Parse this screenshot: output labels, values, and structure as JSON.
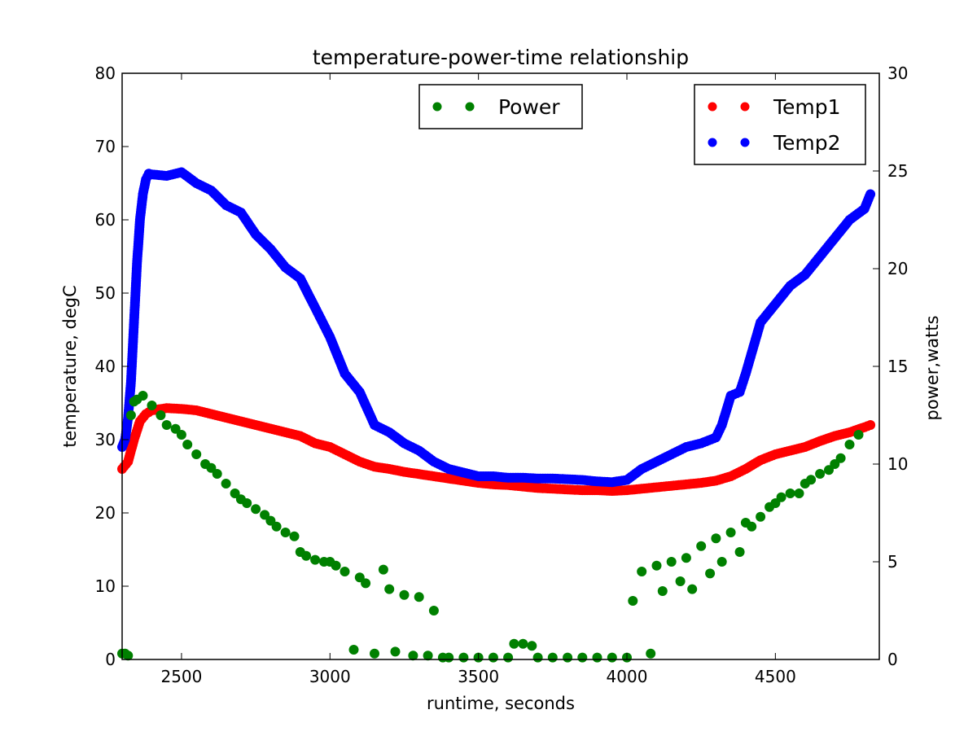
{
  "chart_data": {
    "type": "scatter",
    "title": "temperature-power-time relationship",
    "xlabel": "runtime, seconds",
    "ylabel": "temperature, degC",
    "y2label": "power,watts",
    "xlim": [
      2300,
      4850
    ],
    "ylim": [
      0,
      80
    ],
    "y2lim": [
      0,
      30
    ],
    "xticks": [
      2500,
      3000,
      3500,
      4000,
      4500
    ],
    "yticks": [
      0,
      10,
      20,
      30,
      40,
      50,
      60,
      70,
      80
    ],
    "y2ticks": [
      0,
      5,
      10,
      15,
      20,
      25,
      30
    ],
    "grid": false,
    "legends": [
      {
        "placement": "top-center",
        "entries": [
          "Power"
        ]
      },
      {
        "placement": "top-right",
        "entries": [
          "Temp1",
          "Temp2"
        ]
      }
    ],
    "series": [
      {
        "name": "Temp1",
        "axis": "left",
        "color": "#ff0000",
        "x": [
          2300,
          2320,
          2340,
          2360,
          2380,
          2400,
          2450,
          2500,
          2550,
          2600,
          2650,
          2700,
          2750,
          2800,
          2850,
          2900,
          2950,
          3000,
          3050,
          3100,
          3150,
          3200,
          3250,
          3300,
          3350,
          3400,
          3450,
          3500,
          3550,
          3600,
          3650,
          3700,
          3750,
          3800,
          3850,
          3900,
          3950,
          4000,
          4050,
          4100,
          4150,
          4200,
          4250,
          4300,
          4350,
          4400,
          4450,
          4500,
          4550,
          4600,
          4650,
          4700,
          4750,
          4800,
          4820
        ],
        "y": [
          26,
          27,
          30,
          32.5,
          33.5,
          34,
          34.3,
          34.2,
          34,
          33.5,
          33,
          32.5,
          32,
          31.5,
          31,
          30.5,
          29.5,
          29,
          28,
          27,
          26.3,
          26,
          25.6,
          25.3,
          25,
          24.7,
          24.4,
          24.1,
          23.9,
          23.8,
          23.6,
          23.4,
          23.3,
          23.2,
          23.1,
          23.1,
          23,
          23.1,
          23.3,
          23.5,
          23.7,
          23.9,
          24.1,
          24.4,
          25,
          26,
          27.2,
          28,
          28.5,
          29,
          29.8,
          30.5,
          31,
          31.7,
          32
        ]
      },
      {
        "name": "Temp2",
        "axis": "left",
        "color": "#0000ff",
        "x": [
          2300,
          2310,
          2320,
          2330,
          2340,
          2350,
          2360,
          2370,
          2380,
          2390,
          2400,
          2450,
          2500,
          2550,
          2600,
          2650,
          2700,
          2750,
          2800,
          2850,
          2900,
          2950,
          3000,
          3050,
          3100,
          3150,
          3200,
          3250,
          3300,
          3350,
          3400,
          3450,
          3500,
          3550,
          3600,
          3650,
          3700,
          3750,
          3800,
          3850,
          3900,
          3950,
          4000,
          4050,
          4100,
          4150,
          4200,
          4250,
          4300,
          4320,
          4350,
          4380,
          4400,
          4450,
          4500,
          4550,
          4600,
          4650,
          4700,
          4750,
          4800,
          4820
        ],
        "y": [
          29,
          30,
          33,
          38,
          46,
          54,
          60,
          63.5,
          65.5,
          66.3,
          66.2,
          66,
          66.5,
          65,
          64,
          62,
          61,
          58,
          56,
          53.5,
          52,
          48,
          44,
          39,
          36.5,
          32,
          31,
          29.5,
          28.5,
          27,
          26,
          25.5,
          25,
          25,
          24.8,
          24.8,
          24.7,
          24.7,
          24.6,
          24.5,
          24.3,
          24.2,
          24.5,
          26,
          27,
          28,
          29,
          29.5,
          30.3,
          32,
          36,
          36.5,
          39,
          46,
          48.5,
          51,
          52.5,
          55,
          57.5,
          60,
          61.5,
          63.5
        ]
      },
      {
        "name": "Power",
        "axis": "right",
        "color": "#008000",
        "x": [
          2300,
          2310,
          2320,
          2330,
          2340,
          2350,
          2370,
          2400,
          2430,
          2450,
          2480,
          2500,
          2520,
          2550,
          2580,
          2600,
          2620,
          2650,
          2680,
          2700,
          2720,
          2750,
          2780,
          2800,
          2820,
          2850,
          2880,
          2900,
          2920,
          2950,
          2980,
          3000,
          3020,
          3050,
          3080,
          3100,
          3120,
          3150,
          3180,
          3200,
          3220,
          3250,
          3280,
          3300,
          3330,
          3350,
          3380,
          3400,
          3450,
          3500,
          3550,
          3600,
          3620,
          3650,
          3680,
          3700,
          3750,
          3800,
          3850,
          3900,
          3950,
          4000,
          4020,
          4050,
          4080,
          4100,
          4120,
          4150,
          4180,
          4200,
          4220,
          4250,
          4280,
          4300,
          4320,
          4350,
          4380,
          4400,
          4420,
          4450,
          4480,
          4500,
          4520,
          4550,
          4580,
          4600,
          4620,
          4650,
          4680,
          4700,
          4720,
          4750,
          4780
        ],
        "y": [
          0.3,
          0.3,
          0.2,
          12.5,
          13.2,
          13.3,
          13.5,
          13,
          12.5,
          12,
          11.8,
          11.5,
          11,
          10.5,
          10,
          9.8,
          9.5,
          9,
          8.5,
          8.2,
          8,
          7.7,
          7.4,
          7.1,
          6.8,
          6.5,
          6.3,
          5.5,
          5.3,
          5.1,
          5,
          5,
          4.8,
          4.5,
          0.5,
          4.2,
          3.9,
          0.3,
          4.6,
          3.6,
          0.4,
          3.3,
          0.2,
          3.2,
          0.2,
          2.5,
          0.1,
          0.1,
          0.1,
          0.1,
          0.1,
          0.1,
          0.8,
          0.8,
          0.7,
          0.1,
          0.1,
          0.1,
          0.1,
          0.1,
          0.1,
          0.1,
          3,
          4.5,
          0.3,
          4.8,
          3.5,
          5,
          4,
          5.2,
          3.6,
          5.8,
          4.4,
          6.2,
          5,
          6.5,
          5.5,
          7,
          6.8,
          7.3,
          7.8,
          8,
          8.3,
          8.5,
          8.5,
          9,
          9.2,
          9.5,
          9.7,
          10,
          10.3,
          11,
          11.5
        ]
      }
    ]
  }
}
